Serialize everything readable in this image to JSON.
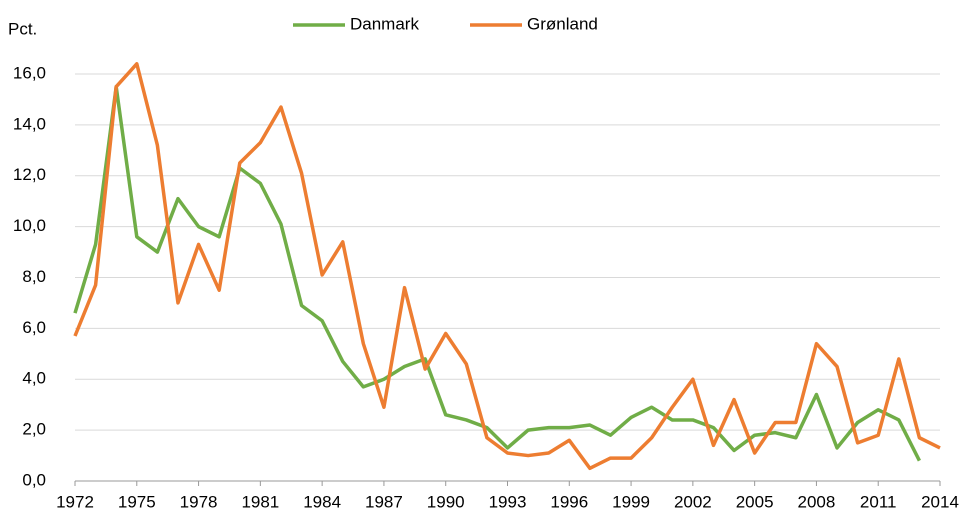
{
  "chart_data": {
    "type": "line",
    "ylabel": "Pct.",
    "x": [
      1972,
      1973,
      1974,
      1975,
      1976,
      1977,
      1978,
      1979,
      1980,
      1981,
      1982,
      1983,
      1984,
      1985,
      1986,
      1987,
      1988,
      1989,
      1990,
      1991,
      1992,
      1993,
      1994,
      1995,
      1996,
      1997,
      1998,
      1999,
      2000,
      2001,
      2002,
      2003,
      2004,
      2005,
      2006,
      2007,
      2008,
      2009,
      2010,
      2011,
      2012,
      2013,
      2014
    ],
    "series": [
      {
        "name": "Danmark",
        "color": "#70ad47",
        "values": [
          6.6,
          9.3,
          15.5,
          9.6,
          9.0,
          11.1,
          10.0,
          9.6,
          12.3,
          11.7,
          10.1,
          6.9,
          6.3,
          4.7,
          3.7,
          4.0,
          4.5,
          4.8,
          2.6,
          2.4,
          2.1,
          1.3,
          2.0,
          2.1,
          2.1,
          2.2,
          1.8,
          2.5,
          2.9,
          2.4,
          2.4,
          2.1,
          1.2,
          1.8,
          1.9,
          1.7,
          3.4,
          1.3,
          2.3,
          2.8,
          2.4,
          0.8,
          null
        ]
      },
      {
        "name": "Grønland",
        "color": "#ed7d31",
        "values": [
          5.7,
          7.7,
          15.5,
          16.4,
          13.2,
          7.0,
          9.3,
          7.5,
          12.5,
          13.3,
          14.7,
          12.1,
          8.1,
          9.4,
          5.4,
          2.9,
          7.6,
          4.4,
          5.8,
          4.6,
          1.7,
          1.1,
          1.0,
          1.1,
          1.6,
          0.5,
          0.9,
          0.9,
          1.7,
          2.9,
          4.0,
          1.4,
          3.2,
          1.1,
          2.3,
          2.3,
          5.4,
          4.5,
          1.5,
          1.8,
          4.8,
          1.7,
          1.3
        ]
      }
    ],
    "xlim": [
      1972,
      2014
    ],
    "xticks": [
      1972,
      1975,
      1978,
      1981,
      1984,
      1987,
      1990,
      1993,
      1996,
      1999,
      2002,
      2005,
      2008,
      2011,
      2014
    ],
    "ylim": [
      0,
      16
    ],
    "yticks": [
      {
        "value": 0,
        "label": "0,0"
      },
      {
        "value": 2,
        "label": "2,0"
      },
      {
        "value": 4,
        "label": "4,0"
      },
      {
        "value": 6,
        "label": "6,0"
      },
      {
        "value": 8,
        "label": "8,0"
      },
      {
        "value": 10,
        "label": "10,0"
      },
      {
        "value": 12,
        "label": "12,0"
      },
      {
        "value": 14,
        "label": "14,0"
      },
      {
        "value": 16,
        "label": "16,0"
      }
    ],
    "grid": true,
    "legend": "top"
  }
}
